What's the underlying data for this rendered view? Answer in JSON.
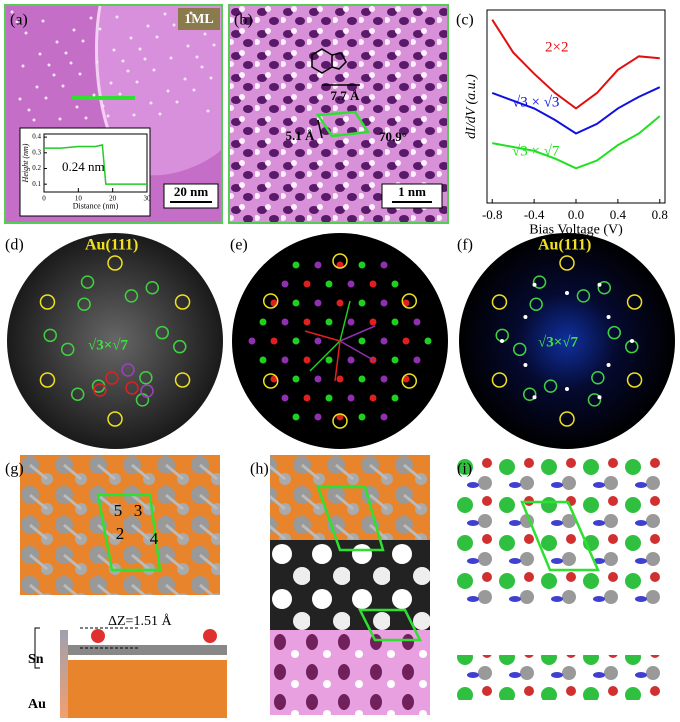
{
  "chart_data": [
    {
      "type": "line",
      "x_label": "Bias Voltage (V)",
      "y_label": "dI/dV (a.u.)",
      "xlim": [
        -0.85,
        0.85
      ],
      "ylim": [
        0,
        10
      ],
      "xticks": [
        -0.8,
        -0.4,
        {
          "value": 0,
          "label": "0.0"
        },
        0.4,
        0.8
      ],
      "x": [
        -0.8,
        -0.6,
        -0.4,
        -0.2,
        0,
        0.2,
        0.4,
        0.6,
        0.8
      ],
      "series": [
        {
          "name": "2×2",
          "color": "#e01010",
          "values": [
            9.5,
            7.8,
            6.7,
            5.7,
            4.9,
            5.7,
            6.9,
            7.6,
            7.5
          ]
        },
        {
          "name": "√3 × √3",
          "color": "#1010e0",
          "values": [
            5.7,
            5.3,
            4.9,
            4.3,
            3.6,
            4.1,
            4.9,
            5.5,
            6.0
          ]
        },
        {
          "name": "√3 × √7",
          "color": "#20e020",
          "values": [
            3.1,
            2.9,
            2.7,
            2.3,
            1.8,
            2.2,
            3.0,
            3.6,
            4.5
          ]
        }
      ]
    },
    {
      "type": "line",
      "x_label": "Distance (nm)",
      "y_label": "Height (nm)",
      "xlim": [
        0,
        30
      ],
      "ylim": [
        0.05,
        0.42
      ],
      "xticks": [
        0,
        10,
        20,
        30
      ],
      "yticks": [
        0.1,
        0.2,
        0.3,
        0.4
      ],
      "x": [
        0,
        5,
        10,
        15,
        17,
        18,
        20,
        25,
        30
      ],
      "values": [
        0.33,
        0.33,
        0.34,
        0.34,
        0.35,
        0.1,
        0.1,
        0.1,
        0.1
      ],
      "color": "#22cc22",
      "annotation": "0.24 nm"
    }
  ],
  "panels": {
    "a": {
      "label": "(a)",
      "tag": "1ML",
      "scale_bar": "20 nm"
    },
    "b": {
      "label": "(b)",
      "lattice_a": "7.7 Å",
      "lattice_b": "5.1 Å",
      "angle": "70.9°",
      "scale_bar": "1 nm"
    },
    "c": {
      "label": "(c)"
    },
    "d": {
      "label": "(d)",
      "substrate": "Au(111)",
      "reconstruction": "√3×√7"
    },
    "e": {
      "label": "(e)"
    },
    "f": {
      "label": "(f)",
      "substrate": "Au(111)",
      "reconstruction": "√3×√7"
    },
    "g": {
      "label": "(g)",
      "sites": [
        "5",
        "3",
        "2",
        "4"
      ],
      "height_difference": "ΔZ=1.51 Å",
      "layer_top": "Sn",
      "layer_bottom": "Au"
    },
    "h": {
      "label": "(h)"
    },
    "i": {
      "label": "(i)"
    }
  }
}
